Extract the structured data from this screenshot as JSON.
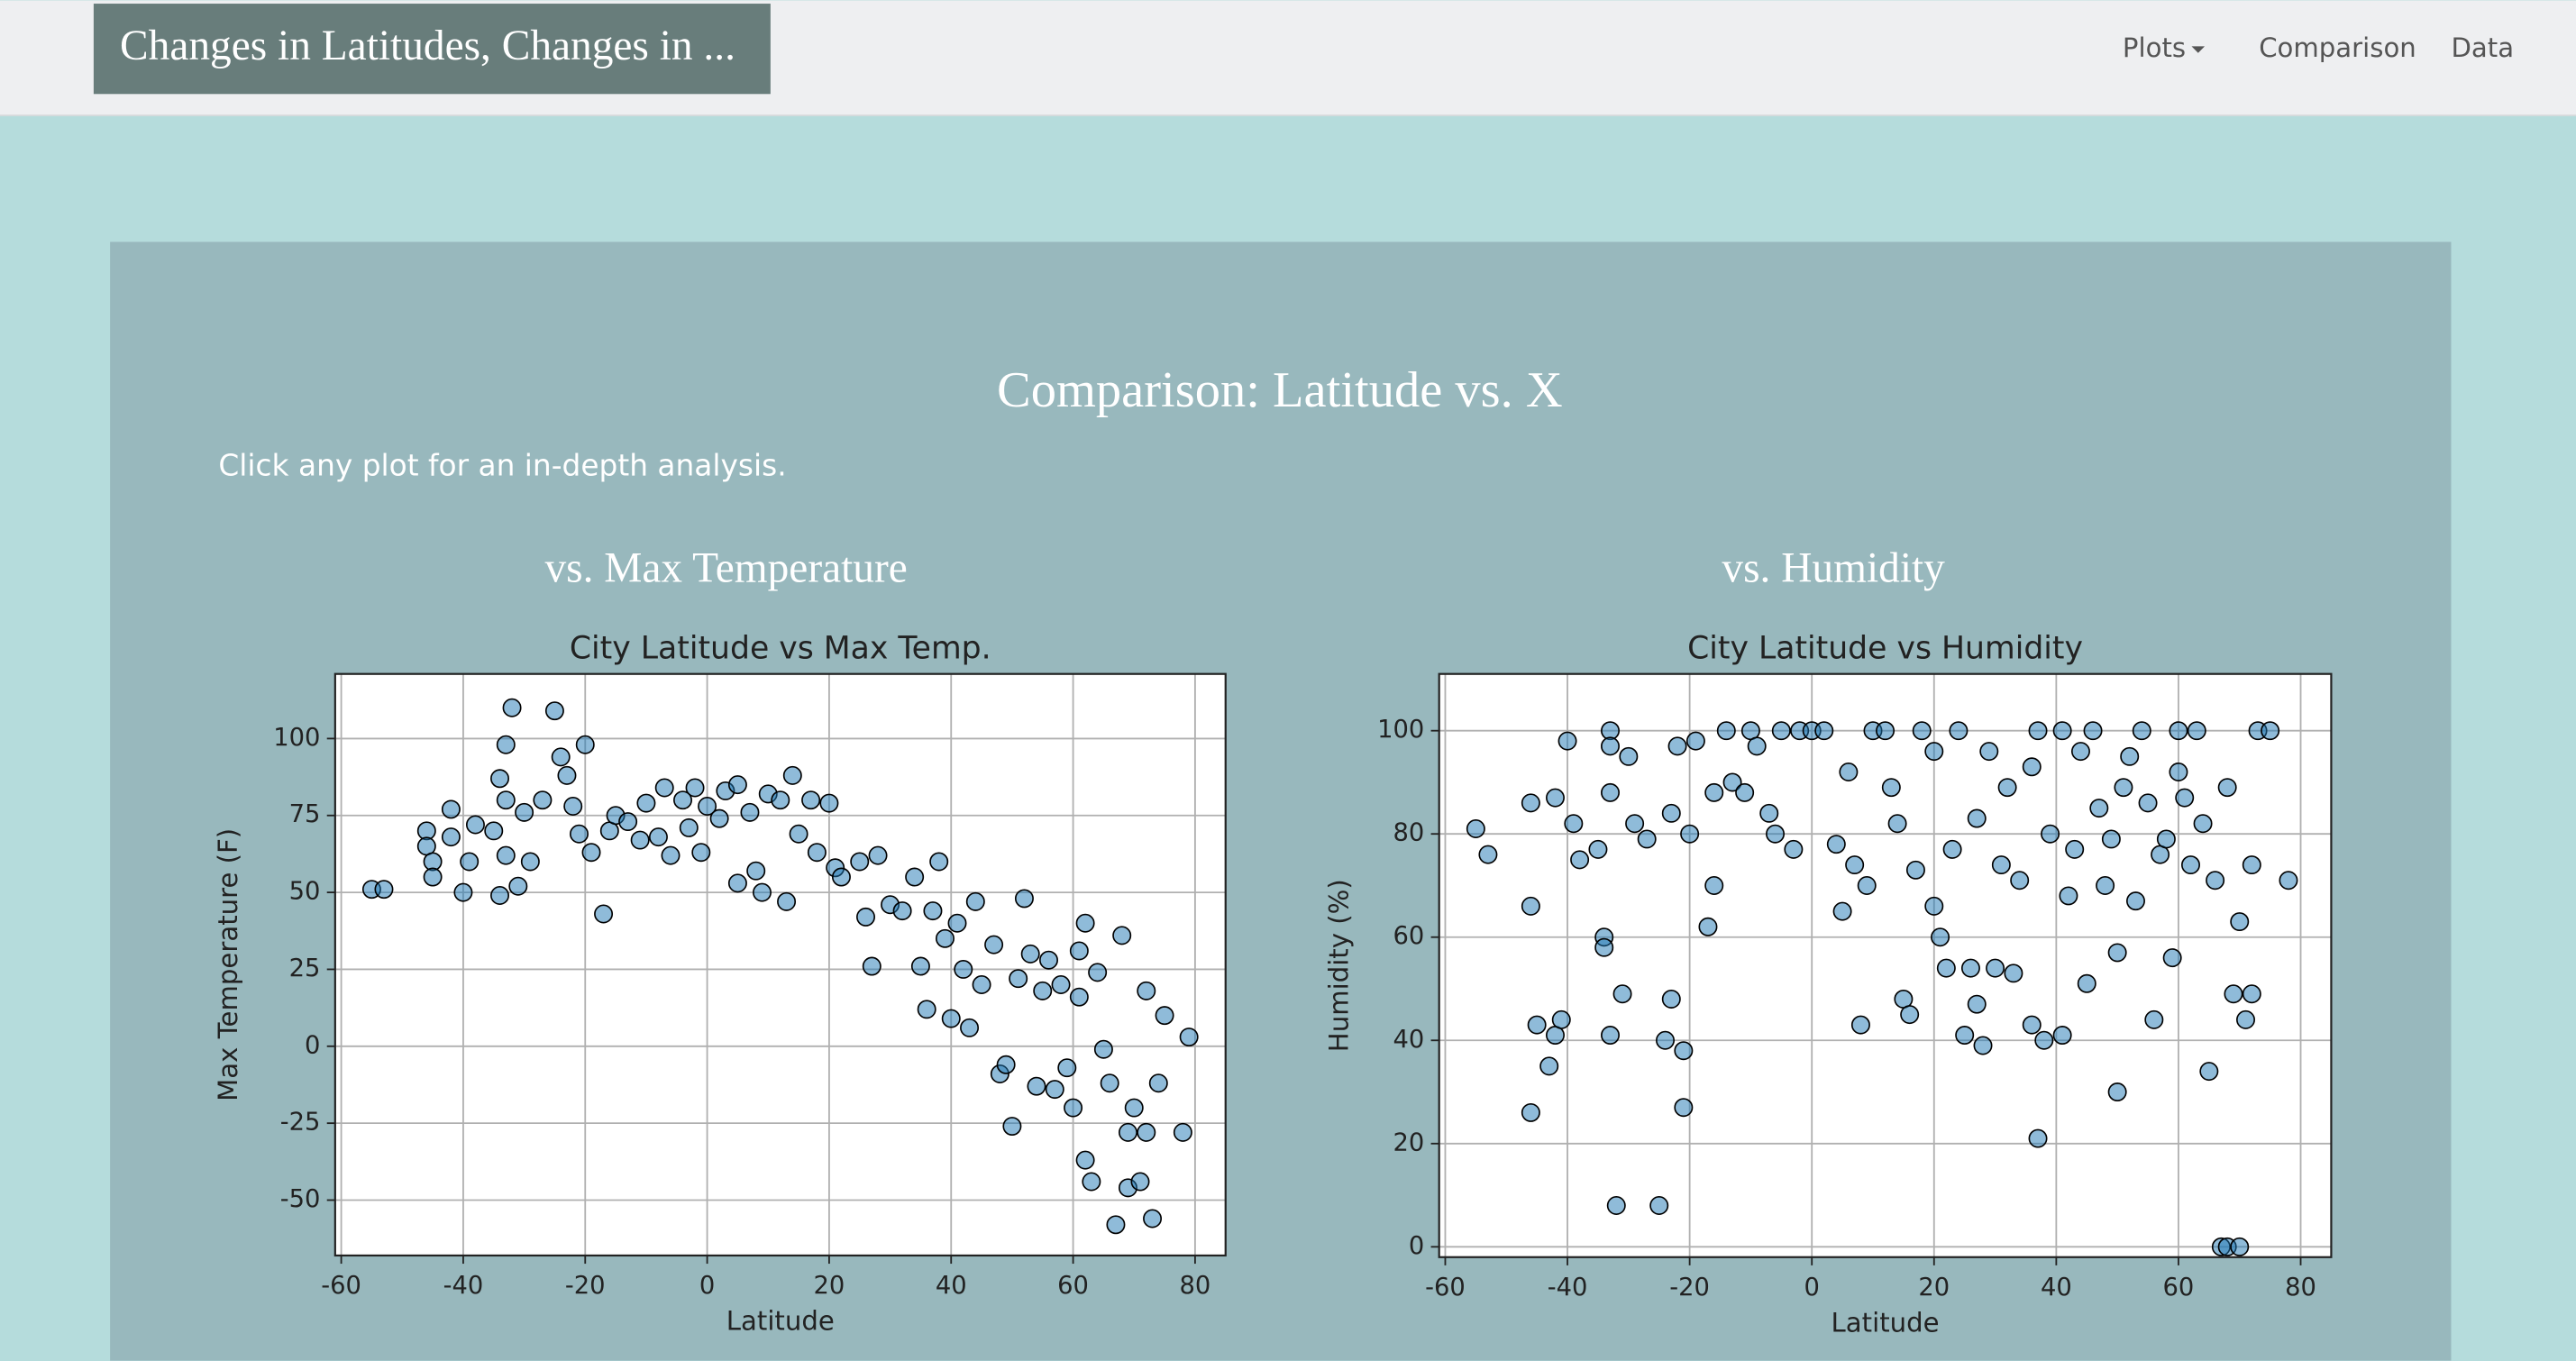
{
  "navbar": {
    "brand": "Changes in Latitudes, Changes in ...",
    "links": [
      "Plots",
      "Comparison",
      "Data"
    ]
  },
  "page": {
    "heading": "Comparison: Latitude vs. X",
    "instruction": "Click any plot for an in-depth analysis.",
    "sections": [
      "vs. Max Temperature",
      "vs. Humidity"
    ]
  },
  "chart_data": [
    {
      "type": "scatter",
      "title": "City Latitude vs Max Temp.",
      "x_label": "Latitude",
      "y_label": "Max Temperature (F)",
      "color": "#1f77b4",
      "grid": true,
      "xlim": [
        -61,
        85
      ],
      "ylim": [
        -68,
        121
      ],
      "xticks": [
        -60,
        -40,
        -20,
        0,
        20,
        40,
        60,
        80
      ],
      "yticks": [
        -50,
        -25,
        0,
        25,
        50,
        75,
        100
      ],
      "x": [
        -55,
        -53,
        -46,
        -46,
        -45,
        -45,
        -42,
        -42,
        -40,
        -39,
        -38,
        -35,
        -34,
        -34,
        -33,
        -33,
        -33,
        -32,
        -31,
        -30,
        -29,
        -27,
        -25,
        -24,
        -23,
        -22,
        -21,
        -20,
        -19,
        -17,
        -16,
        -15,
        -13,
        -11,
        -10,
        -8,
        -7,
        -6,
        -4,
        -3,
        -2,
        -1,
        0,
        2,
        3,
        5,
        5,
        7,
        8,
        9,
        10,
        12,
        13,
        14,
        15,
        17,
        18,
        20,
        21,
        22,
        25,
        26,
        27,
        28,
        30,
        32,
        34,
        35,
        36,
        37,
        38,
        39,
        40,
        41,
        42,
        43,
        44,
        45,
        47,
        48,
        49,
        50,
        51,
        52,
        53,
        54,
        55,
        56,
        57,
        58,
        59,
        60,
        61,
        61,
        62,
        62,
        63,
        64,
        65,
        66,
        67,
        68,
        69,
        69,
        70,
        71,
        72,
        72,
        73,
        74,
        75,
        78,
        79
      ],
      "y": [
        51,
        51,
        70,
        65,
        60,
        55,
        77,
        68,
        50,
        60,
        72,
        70,
        49,
        87,
        80,
        98,
        62,
        110,
        52,
        76,
        60,
        80,
        109,
        94,
        88,
        78,
        69,
        98,
        63,
        43,
        70,
        75,
        73,
        67,
        79,
        68,
        84,
        62,
        80,
        71,
        84,
        63,
        78,
        74,
        83,
        85,
        53,
        76,
        57,
        50,
        82,
        80,
        47,
        88,
        69,
        80,
        63,
        79,
        58,
        55,
        60,
        42,
        26,
        62,
        46,
        44,
        55,
        26,
        12,
        44,
        60,
        35,
        9,
        40,
        25,
        6,
        47,
        20,
        33,
        -9,
        -6,
        -26,
        22,
        48,
        30,
        -13,
        18,
        28,
        -14,
        20,
        -7,
        -20,
        31,
        16,
        -37,
        40,
        -44,
        24,
        -1,
        -12,
        -58,
        36,
        -46,
        -28,
        -20,
        -44,
        18,
        -28,
        -56,
        -12,
        10,
        -28,
        3
      ]
    },
    {
      "type": "scatter",
      "title": "City Latitude vs Humidity",
      "x_label": "Latitude",
      "y_label": "Humidity (%)",
      "color": "#1f77b4",
      "grid": true,
      "xlim": [
        -61,
        85
      ],
      "ylim": [
        -2,
        111
      ],
      "xticks": [
        -60,
        -40,
        -20,
        0,
        20,
        40,
        60,
        80
      ],
      "yticks": [
        0,
        20,
        40,
        60,
        80,
        100
      ],
      "x": [
        -55,
        -53,
        -46,
        -46,
        -46,
        -45,
        -43,
        -42,
        -42,
        -41,
        -40,
        -39,
        -38,
        -35,
        -34,
        -34,
        -33,
        -33,
        -33,
        -33,
        -32,
        -31,
        -30,
        -29,
        -27,
        -25,
        -24,
        -23,
        -23,
        -22,
        -21,
        -21,
        -20,
        -19,
        -17,
        -16,
        -16,
        -14,
        -13,
        -11,
        -10,
        -9,
        -7,
        -6,
        -5,
        -3,
        -2,
        0,
        2,
        4,
        5,
        6,
        7,
        8,
        9,
        10,
        12,
        13,
        14,
        15,
        16,
        17,
        18,
        20,
        20,
        21,
        22,
        23,
        24,
        25,
        26,
        27,
        27,
        28,
        29,
        30,
        31,
        32,
        33,
        34,
        36,
        36,
        37,
        37,
        38,
        39,
        41,
        41,
        42,
        43,
        44,
        45,
        46,
        47,
        48,
        49,
        50,
        50,
        51,
        52,
        53,
        54,
        55,
        56,
        57,
        58,
        59,
        60,
        60,
        61,
        62,
        63,
        64,
        65,
        66,
        67,
        68,
        68,
        69,
        70,
        70,
        71,
        72,
        72,
        73,
        75,
        78
      ],
      "y": [
        81,
        76,
        86,
        66,
        26,
        43,
        35,
        41,
        87,
        44,
        98,
        82,
        75,
        77,
        60,
        58,
        100,
        97,
        88,
        41,
        8,
        49,
        95,
        82,
        79,
        8,
        40,
        48,
        84,
        97,
        27,
        38,
        80,
        98,
        62,
        88,
        70,
        100,
        90,
        88,
        100,
        97,
        84,
        80,
        100,
        77,
        100,
        100,
        100,
        78,
        65,
        92,
        74,
        43,
        70,
        100,
        100,
        89,
        82,
        48,
        45,
        73,
        100,
        66,
        96,
        60,
        54,
        77,
        100,
        41,
        54,
        83,
        47,
        39,
        96,
        54,
        74,
        89,
        53,
        71,
        43,
        93,
        100,
        21,
        40,
        80,
        41,
        100,
        68,
        77,
        96,
        51,
        100,
        85,
        70,
        79,
        57,
        30,
        89,
        95,
        67,
        100,
        86,
        44,
        76,
        79,
        56,
        92,
        100,
        87,
        74,
        100,
        82,
        34,
        71,
        0,
        0,
        89,
        49,
        0,
        63,
        44,
        74,
        49,
        100,
        100,
        71
      ]
    }
  ]
}
